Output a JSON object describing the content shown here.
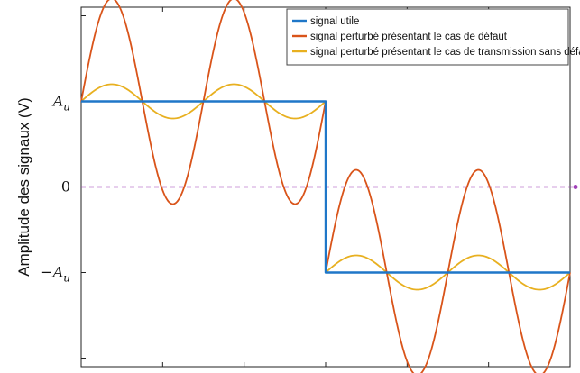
{
  "chart_data": {
    "type": "line",
    "ylabel": "Amplitude des signaux (V)",
    "xlabel": "",
    "x_range": [
      0,
      6.3
    ],
    "ylim": [
      -2.1,
      2.1
    ],
    "y_ticks": [
      {
        "value": 1,
        "label_main": "A",
        "label_sub": "u"
      },
      {
        "value": 0,
        "label_main": "0",
        "label_sub": ""
      },
      {
        "value": -1,
        "label_main": "−A",
        "label_sub": "u"
      }
    ],
    "grid": false,
    "legend_position": "top-right",
    "series": [
      {
        "name": "signal utile",
        "color": "#1f77c8",
        "shape": "piecewise_constant",
        "segments": [
          {
            "x_start": 0,
            "x_end": 3.15,
            "level": 1
          },
          {
            "x_start": 3.15,
            "x_end": 6.3,
            "level": -1
          }
        ]
      },
      {
        "name": "signal perturbé présentant le cas de défaut",
        "color": "#d9541a",
        "shape": "level_plus_sine",
        "sine_amplitude": 1.2,
        "cycles_per_half": 2,
        "segments": [
          {
            "x_start": 0,
            "x_end": 3.15,
            "level": 1
          },
          {
            "x_start": 3.15,
            "x_end": 6.3,
            "level": -1
          }
        ]
      },
      {
        "name": "signal perturbé présentant le cas de transmission sans défaut",
        "color": "#e8b020",
        "shape": "level_plus_sine",
        "sine_amplitude": 0.2,
        "cycles_per_half": 2,
        "segments": [
          {
            "x_start": 0,
            "x_end": 3.15,
            "level": 1
          },
          {
            "x_start": 3.15,
            "x_end": 6.3,
            "level": -1
          }
        ]
      }
    ],
    "reference_line": {
      "y": 0,
      "color": "#a040b8",
      "style": "dashed"
    }
  }
}
